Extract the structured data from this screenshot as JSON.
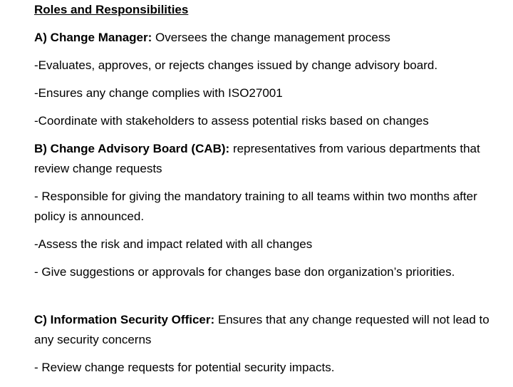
{
  "document": {
    "title": "Roles and Responsibilities",
    "sections": [
      {
        "lead": "A) Change Manager:",
        "text": " Oversees the change management process"
      },
      {
        "text": "-Evaluates, approves, or rejects changes issued by change advisory board."
      },
      {
        "text": "-Ensures any change complies with ISO27001"
      },
      {
        "text": "-Coordinate with stakeholders to assess potential risks based on changes"
      },
      {
        "lead": "B) Change Advisory Board (CAB):",
        "text": " representatives from various departments that review change requests"
      },
      {
        "text": "- Responsible for giving the mandatory training to all teams within two months after policy is announced."
      },
      {
        "text": "-Assess the risk and impact related with all changes"
      },
      {
        "text": "- Give suggestions or approvals for changes base don organization’s priorities."
      },
      {
        "lead": "C) Information Security Officer:",
        "text": " Ensures that any change requested will not lead to any security concerns"
      },
      {
        "text": "- Review change requests for potential security impacts."
      }
    ]
  }
}
